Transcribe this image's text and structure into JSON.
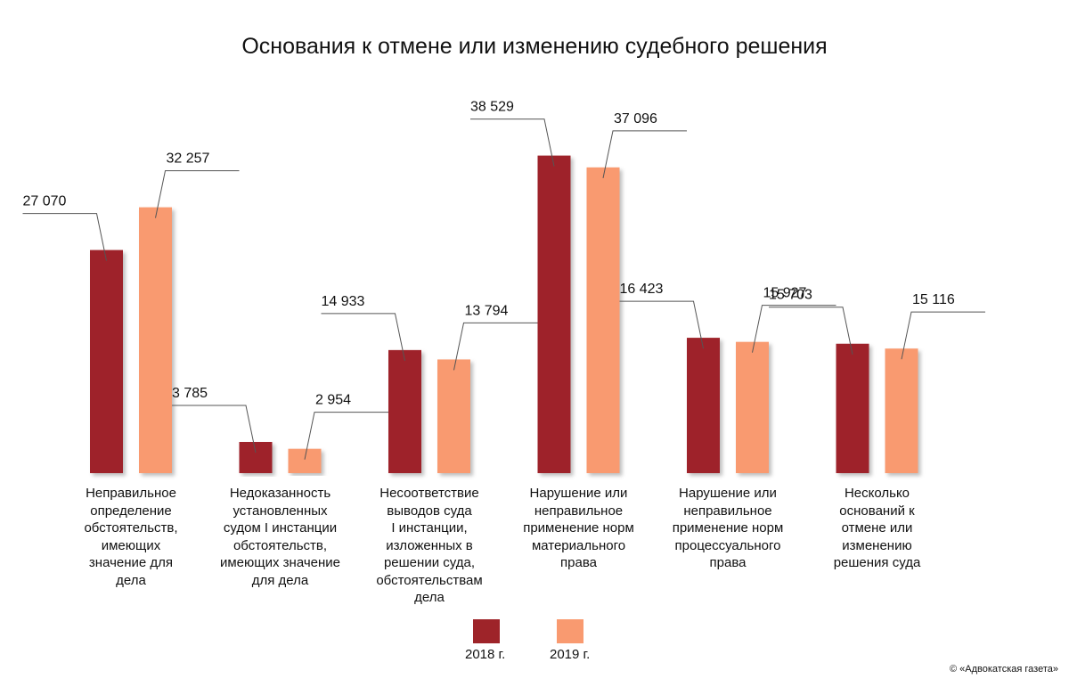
{
  "chart_data": {
    "type": "bar",
    "title": "Основания к отмене или изменению судебного решения",
    "categories": [
      "Неправильное\nопределение\nобстоятельств,\nимеющих\nзначение для\nдела",
      "Недоказанность\nустановленных\nсудом I инстанции\nобстоятельств,\nимеющих значение\nдля дела",
      "Несоответствие\nвыводов суда\nI инстанции,\nизложенных в\nрешении суда,\nобстоятельствам\nдела",
      "Нарушение или\nнеправильное\nприменение норм\nматериального\nправа",
      "Нарушение или\nнеправильное\nприменение норм\nпроцессуального\nправа",
      "Несколько\nоснований к\nотмене или\nизменению\nрешения суда"
    ],
    "series": [
      {
        "name": "2018 г.",
        "color": "#9e2429",
        "values": [
          27070,
          3785,
          14933,
          38529,
          16423,
          15703
        ],
        "labels": [
          "27 070",
          "3 785",
          "14 933",
          "38 529",
          "16 423",
          "15 703"
        ]
      },
      {
        "name": "2019 г.",
        "color": "#f99a70",
        "values": [
          32257,
          2954,
          13794,
          37096,
          15927,
          15116
        ],
        "labels": [
          "32 257",
          "2 954",
          "13 794",
          "37 096",
          "15 927",
          "15 116"
        ]
      }
    ],
    "ylim": [
      0,
      40000
    ],
    "grid": false,
    "legend": "bottom"
  },
  "credit": "© «Адвокатская газета»"
}
